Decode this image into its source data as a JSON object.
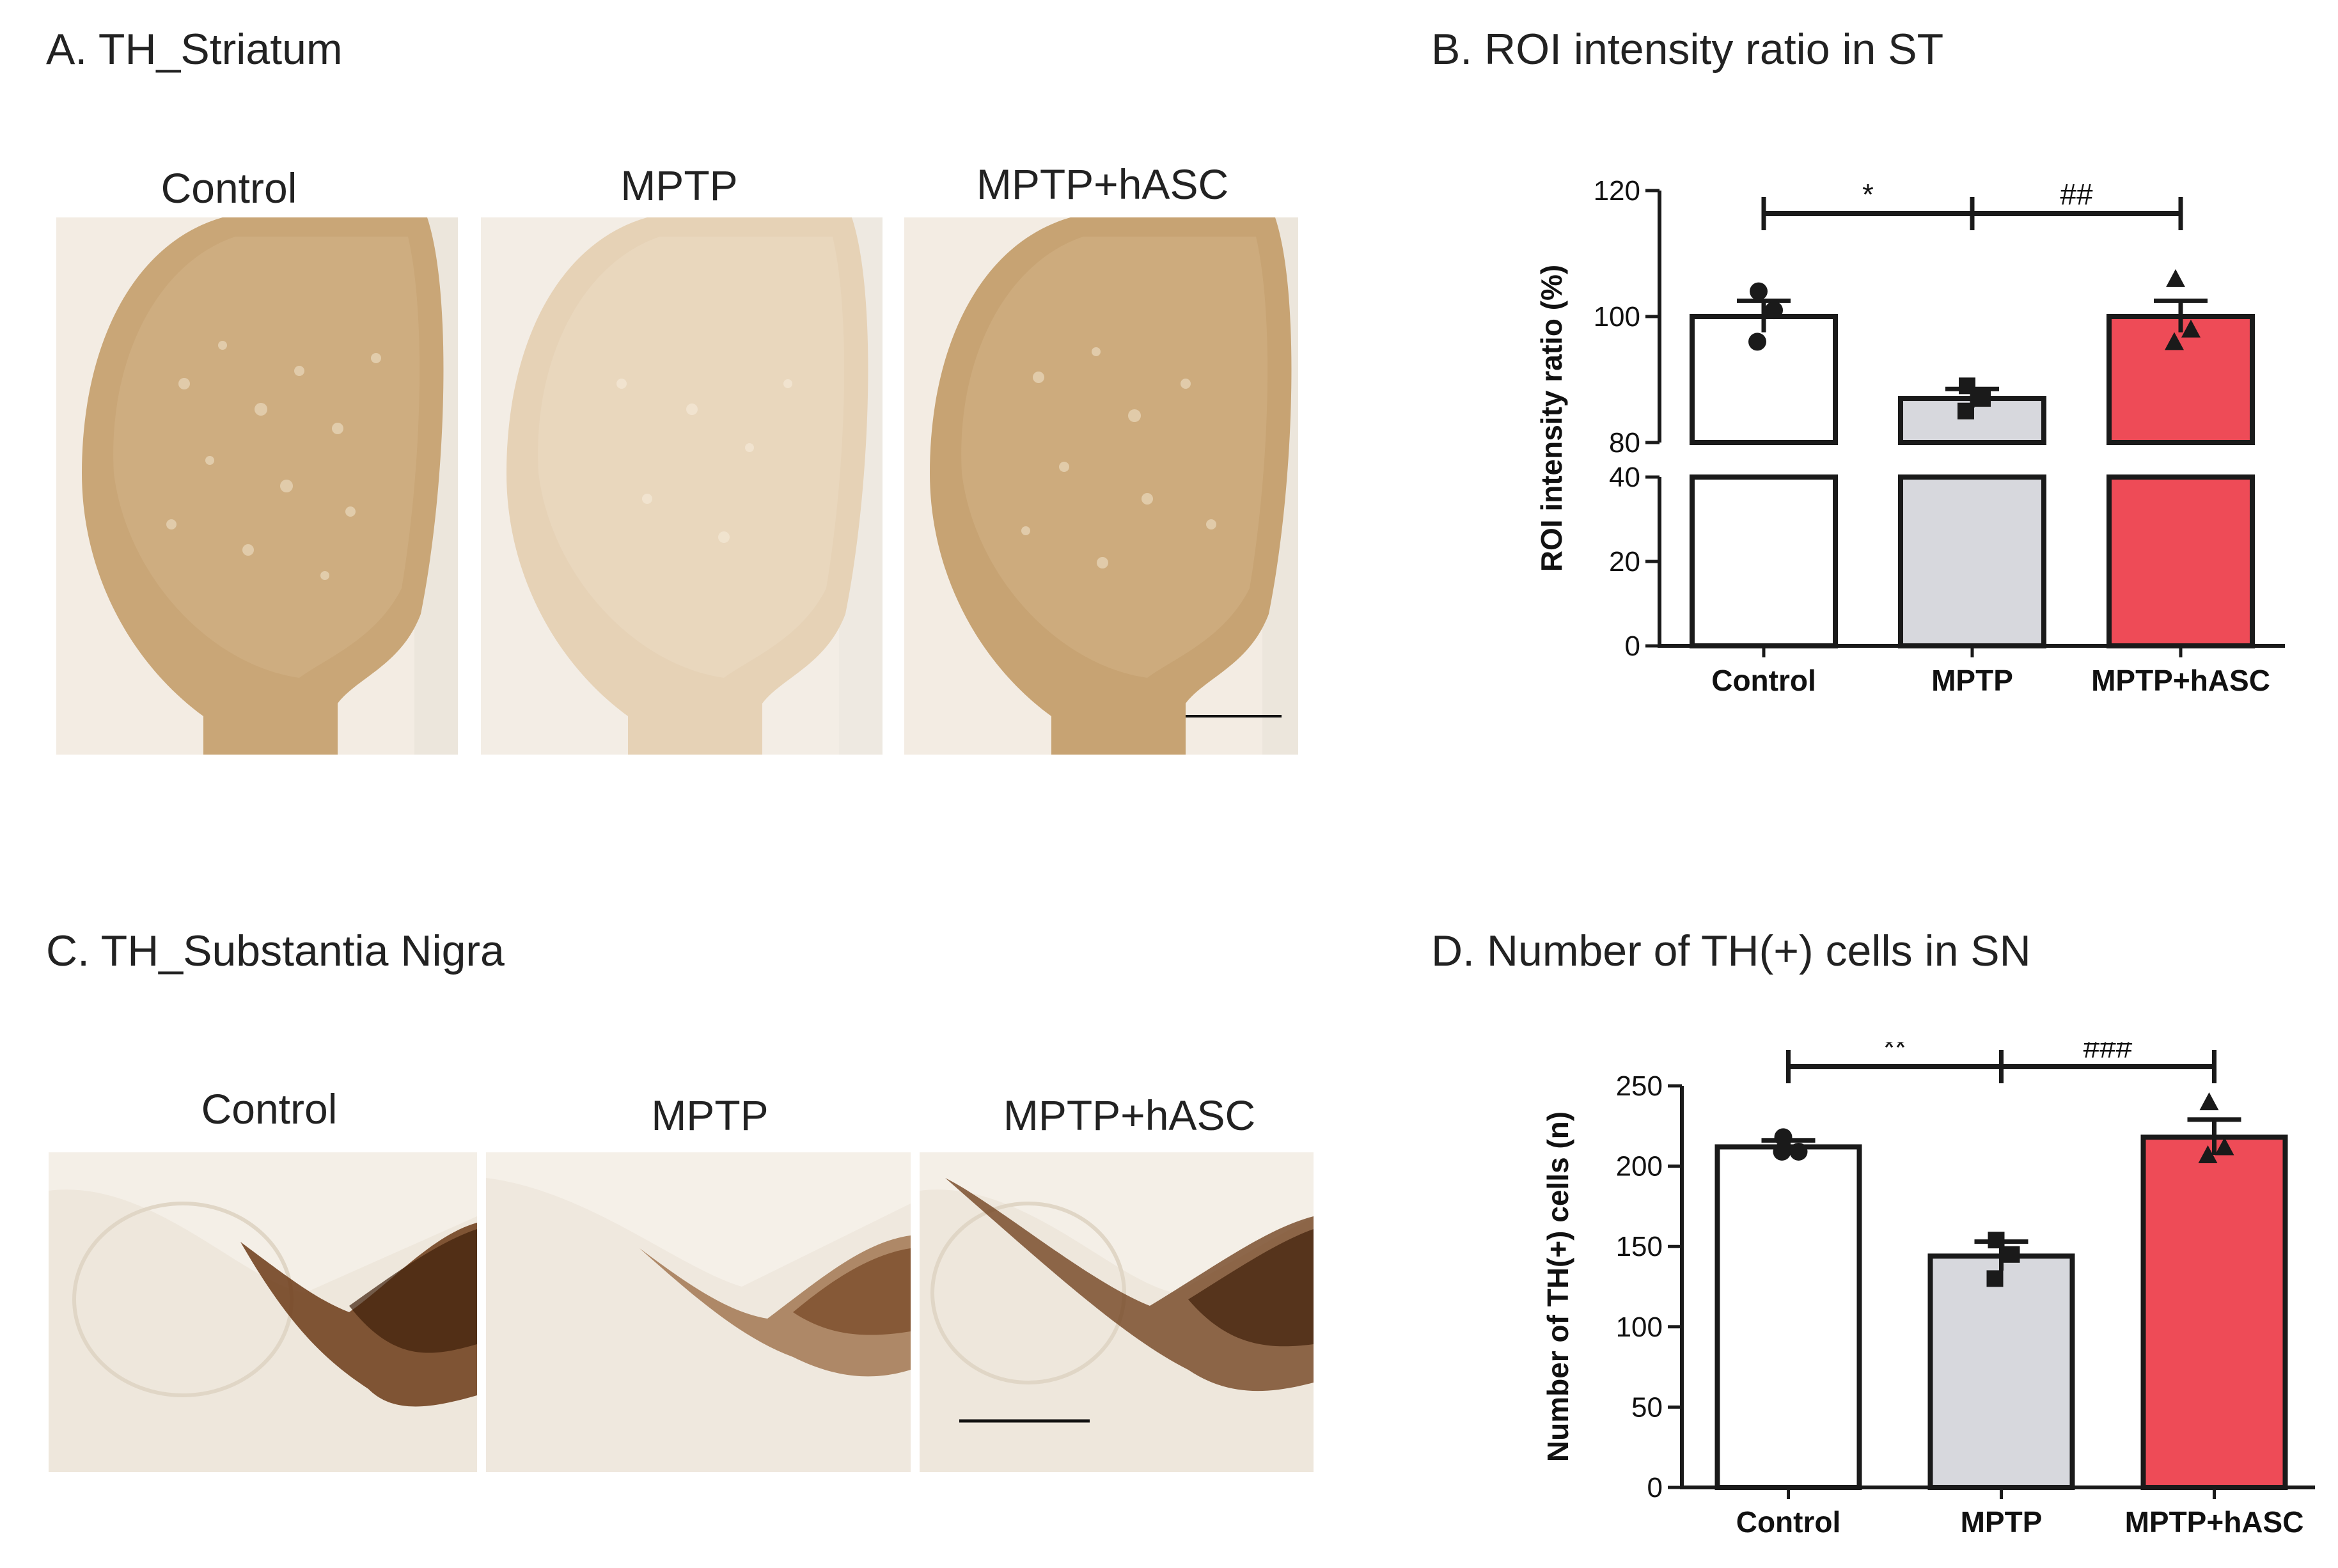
{
  "panels": {
    "a": {
      "title": "A. TH_Striatum",
      "image_labels": [
        "Control",
        "MPTP",
        "MPTP+hASC"
      ]
    },
    "b": {
      "title": "B. ROI intensity ratio in ST"
    },
    "c": {
      "title": "C. TH_Substantia Nigra",
      "image_labels": [
        "Control",
        "MPTP",
        "MPTP+hASC"
      ]
    },
    "d": {
      "title": "D. Number of TH(+) cells in SN"
    }
  },
  "colors": {
    "control": "#ffffff",
    "mptp": "#d7d8dd",
    "mptp_hasc": "#ee4b57",
    "axis": "#1a1a1a",
    "striatum_stain": "#c9a677",
    "nigra_stain": "#5a2f10"
  },
  "chart_data": [
    {
      "id": "roi",
      "type": "bar",
      "title": "",
      "xlabel": "",
      "ylabel": "ROI intensity ratio (%)",
      "categories": [
        "Control",
        "MPTP",
        "MPTP+hASC"
      ],
      "values": [
        100,
        87,
        100
      ],
      "error": [
        2.5,
        1.5,
        2.5
      ],
      "points": [
        [
          104,
          101,
          96
        ],
        [
          89,
          87,
          85
        ],
        [
          106,
          98,
          96
        ]
      ],
      "markers": [
        "circle",
        "square",
        "triangle"
      ],
      "ylim": [
        0,
        120
      ],
      "axis_break": [
        40,
        80
      ],
      "yticks": [
        0,
        20,
        40,
        80,
        100,
        120
      ],
      "significance": [
        {
          "from": 0,
          "to": 1,
          "label": "*"
        },
        {
          "from": 1,
          "to": 2,
          "label": "##"
        }
      ]
    },
    {
      "id": "cells",
      "type": "bar",
      "title": "",
      "xlabel": "",
      "ylabel": "Number of TH(+) cells (n)",
      "categories": [
        "Control",
        "MPTP",
        "MPTP+hASC"
      ],
      "values": [
        212,
        144,
        218
      ],
      "error": [
        4,
        9,
        11
      ],
      "points": [
        [
          218,
          209,
          209
        ],
        [
          154,
          145,
          130
        ],
        [
          240,
          212,
          207
        ]
      ],
      "markers": [
        "circle",
        "square",
        "triangle"
      ],
      "ylim": [
        0,
        250
      ],
      "yticks": [
        0,
        50,
        100,
        150,
        200,
        250
      ],
      "significance": [
        {
          "from": 0,
          "to": 1,
          "label": "**"
        },
        {
          "from": 1,
          "to": 2,
          "label": "###"
        }
      ]
    }
  ]
}
